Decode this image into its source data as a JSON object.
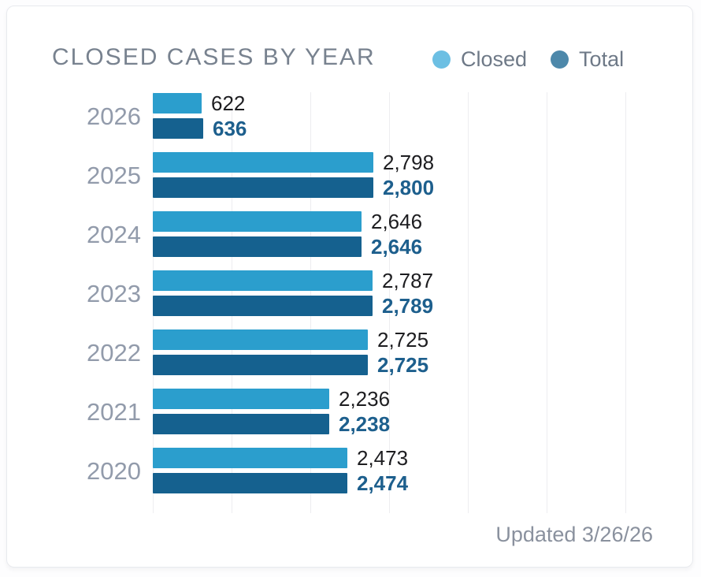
{
  "card": {
    "title": "CLOSED CASES BY YEAR",
    "updated": "Updated 3/26/26"
  },
  "legend": {
    "closed": {
      "label": "Closed",
      "color": "#6cbfe3"
    },
    "total": {
      "label": "Total",
      "color": "#4d88aa"
    }
  },
  "colors": {
    "closed_bar": "#2b9ecd",
    "total_bar": "#15618f",
    "closed_value_text": "#1d1d20",
    "total_value_text": "#1d5f8d",
    "gridline": "#ededf0"
  },
  "chart_data": {
    "type": "bar",
    "orientation": "horizontal",
    "title": "CLOSED CASES BY YEAR",
    "categories": [
      "2026",
      "2025",
      "2024",
      "2023",
      "2022",
      "2021",
      "2020"
    ],
    "series": [
      {
        "name": "Closed",
        "color": "#2b9ecd",
        "values": [
          622,
          2798,
          2646,
          2787,
          2725,
          2236,
          2473
        ],
        "labels": [
          "622",
          "2,798",
          "2,646",
          "2,787",
          "2,725",
          "2,236",
          "2,473"
        ]
      },
      {
        "name": "Total",
        "color": "#15618f",
        "values": [
          636,
          2800,
          2646,
          2789,
          2725,
          2238,
          2474
        ],
        "labels": [
          "636",
          "2,800",
          "2,646",
          "2,789",
          "2,725",
          "2,238",
          "2,474"
        ]
      }
    ],
    "xlim": [
      0,
      6900
    ],
    "gridline_interval": 1000,
    "grid": true,
    "legend_position": "top-right",
    "value_labels": "end-of-bar",
    "annotation": "Updated 3/26/26"
  }
}
